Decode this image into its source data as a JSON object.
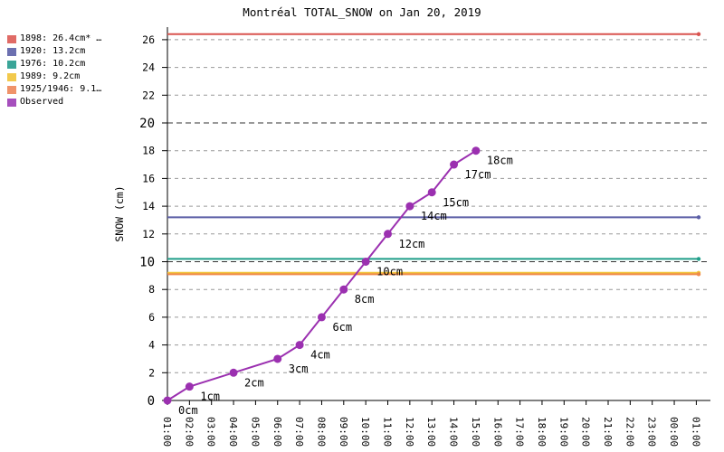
{
  "chart_data": {
    "type": "line",
    "title": "Montréal TOTAL_SNOW on Jan 20, 2019",
    "xlabel": "",
    "ylabel": "SNOW (cm)",
    "ylim": [
      0,
      27
    ],
    "y_major_ticks": [
      0,
      10,
      20
    ],
    "y_ticks": [
      0,
      2,
      4,
      6,
      8,
      10,
      12,
      14,
      16,
      18,
      20,
      22,
      24,
      26
    ],
    "x_ticks": [
      "01:00",
      "02:00",
      "03:00",
      "04:00",
      "05:00",
      "06:00",
      "07:00",
      "08:00",
      "09:00",
      "10:00",
      "11:00",
      "12:00",
      "13:00",
      "14:00",
      "15:00",
      "16:00",
      "17:00",
      "18:00",
      "19:00",
      "20:00",
      "21:00",
      "22:00",
      "23:00",
      "00:00",
      "01:00"
    ],
    "grid": true,
    "legend_position": "top-left",
    "reference_lines": [
      {
        "name": "1898: 26.4cm* …",
        "value": 26.4,
        "color": "#d9534f"
      },
      {
        "name": "1920: 13.2cm",
        "value": 13.2,
        "color": "#5b5ea6"
      },
      {
        "name": "1976: 10.2cm",
        "value": 10.2,
        "color": "#1f9e89"
      },
      {
        "name": "1989: 9.2cm",
        "value": 9.2,
        "color": "#f0c43a"
      },
      {
        "name": "1925/1946: 9.1…",
        "value": 9.1,
        "color": "#f08a4b"
      }
    ],
    "series": [
      {
        "name": "Observed",
        "color": "#9b30b0",
        "x": [
          0,
          1,
          3,
          5,
          6,
          7,
          8,
          9,
          10,
          11,
          12,
          13,
          14
        ],
        "values": [
          0,
          1,
          2,
          3,
          4,
          6,
          8,
          10,
          12,
          14,
          15,
          17,
          18
        ],
        "labels": [
          "0cm",
          "1cm",
          "2cm",
          "3cm",
          "4cm",
          "6cm",
          "8cm",
          "10cm",
          "12cm",
          "14cm",
          "15cm",
          "17cm",
          "18cm"
        ]
      }
    ]
  }
}
